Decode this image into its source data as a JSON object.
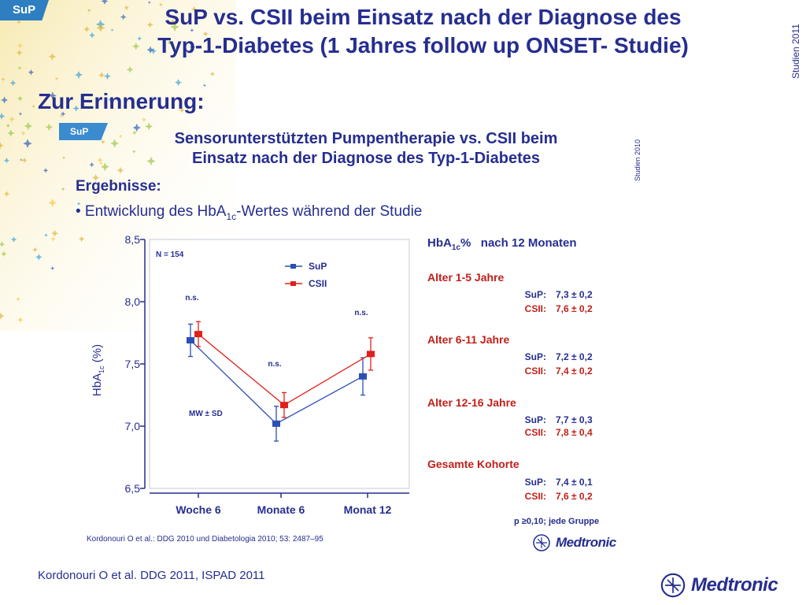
{
  "badge": "SuP",
  "title_line1": "SuP vs. CSII beim Einsatz nach der Diagnose des",
  "title_line2": "Typ-1-Diabetes (1 Jahres follow up ONSET- Studie)",
  "side_label": "Studien 2011",
  "reminder": "Zur Erinnerung:",
  "inner": {
    "badge": "SuP",
    "title_line1": "Sensorunterstützten Pumpentherapie vs. CSII beim",
    "title_line2": "Einsatz nach der Diagnose des Typ-1-Diabetes",
    "side_label": "Studien 2010",
    "ergebnisse": "Ergebnisse:",
    "bullet_pre": "• Entwicklung  des HbA",
    "bullet_sub": "1c",
    "bullet_post": "-Wertes während  der Studie",
    "reference": "Kordonouri  O et al.: DDG 2010  und  Diabetologia  2010;  53:  2487–95",
    "stats_head_pre": "HbA",
    "stats_head_sub": "1c",
    "stats_head_post": "%   nach 12 Monaten",
    "groups": [
      {
        "title": "Alter 1-5 Jahre",
        "sup_label": "SuP:",
        "sup_value": "7,3 ± 0,2",
        "csii_label": "CSII:",
        "csii_value": "7,6 ± 0,2"
      },
      {
        "title": "Alter 6-11 Jahre",
        "sup_label": "SuP:",
        "sup_value": "7,2 ± 0,2",
        "csii_label": "CSII:",
        "csii_value": "7,4 ± 0,2"
      },
      {
        "title": "Alter 12-16 Jahre",
        "sup_label": "SuP:",
        "sup_value": "7,7 ± 0,3",
        "csii_label": "CSII:",
        "csii_value": "7,8 ± 0,4"
      },
      {
        "title": "Gesamte Kohorte",
        "sup_label": "SuP:",
        "sup_value": "7,4 ± 0,1",
        "csii_label": "CSII:",
        "csii_value": "7,6 ± 0,2"
      }
    ],
    "p_note": "p ≥0,10;  jede Gruppe",
    "logo_small": "Medtronic"
  },
  "reference_bottom": "Kordonouri O et al. DDG 2011, ISPAD 2011",
  "logo": "Medtronic",
  "colors": {
    "sup": "#2b4fb3",
    "csii": "#e0201a",
    "title": "#262e8f",
    "accent_red": "#c0201a"
  },
  "chart_data": {
    "type": "line",
    "categories": [
      "Woche 6",
      "Monate 6",
      "Monat 12"
    ],
    "ylabel_pre": "HbA",
    "ylabel_sub": "1c",
    "ylabel_post": " (%)",
    "ylim": [
      6.5,
      8.5
    ],
    "yticks": [
      "8,5",
      "8,0",
      "7,5",
      "7,0",
      "6,5"
    ],
    "ytick_values": [
      8.5,
      8.0,
      7.5,
      7.0,
      6.5
    ],
    "n_label": "N = 154",
    "mw_label": "MW ± SD",
    "annotations": [
      "n.s.",
      "n.s.",
      "n.s."
    ],
    "series": [
      {
        "name": "SuP",
        "values": [
          7.69,
          7.02,
          7.4
        ],
        "err": [
          0.13,
          0.14,
          0.15
        ],
        "color": "#2b4fb3"
      },
      {
        "name": "CSII",
        "values": [
          7.74,
          7.17,
          7.58
        ],
        "err": [
          0.1,
          0.1,
          0.13
        ],
        "color": "#e0201a"
      }
    ]
  }
}
